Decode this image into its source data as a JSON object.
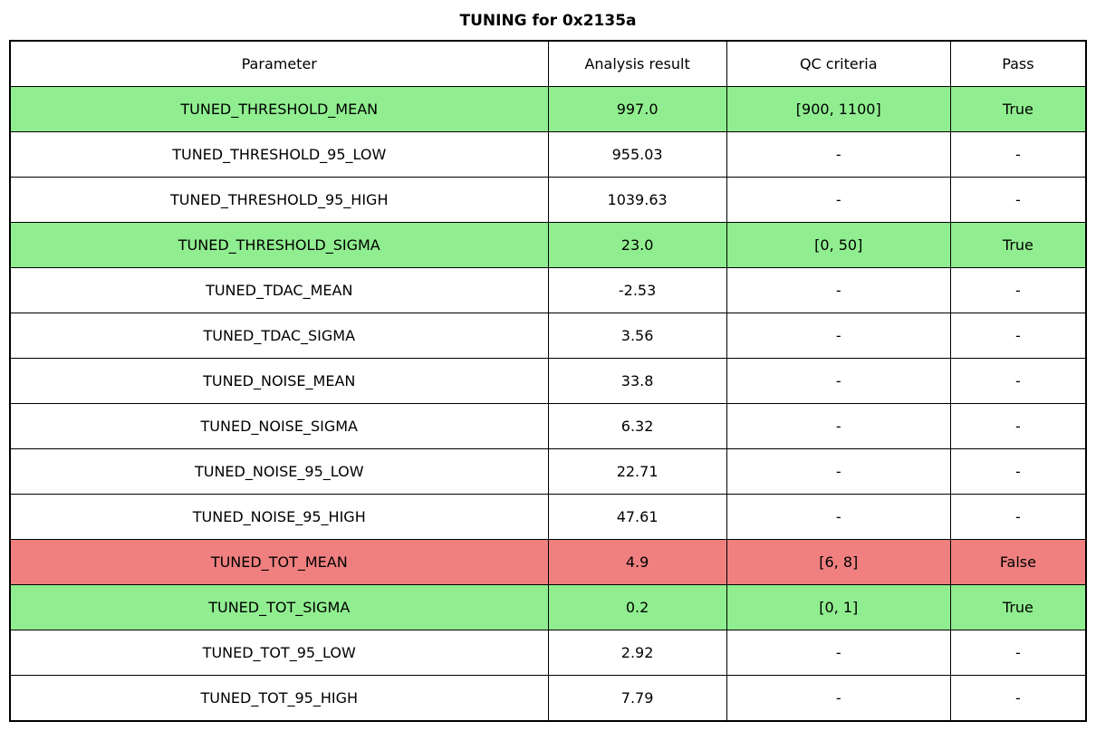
{
  "title": "TUNING for 0x2135a",
  "colors": {
    "pass_green": "#90ee90",
    "fail_red": "#f08080",
    "neutral": "#ffffff",
    "border": "#000000"
  },
  "table": {
    "headers": [
      "Parameter",
      "Analysis result",
      "QC criteria",
      "Pass"
    ],
    "rows": [
      {
        "parameter": "TUNED_THRESHOLD_MEAN",
        "result": "997.0",
        "qc": "[900, 1100]",
        "pass": "True",
        "status": "pass"
      },
      {
        "parameter": "TUNED_THRESHOLD_95_LOW",
        "result": "955.03",
        "qc": "-",
        "pass": "-",
        "status": "none"
      },
      {
        "parameter": "TUNED_THRESHOLD_95_HIGH",
        "result": "1039.63",
        "qc": "-",
        "pass": "-",
        "status": "none"
      },
      {
        "parameter": "TUNED_THRESHOLD_SIGMA",
        "result": "23.0",
        "qc": "[0, 50]",
        "pass": "True",
        "status": "pass"
      },
      {
        "parameter": "TUNED_TDAC_MEAN",
        "result": "-2.53",
        "qc": "-",
        "pass": "-",
        "status": "none"
      },
      {
        "parameter": "TUNED_TDAC_SIGMA",
        "result": "3.56",
        "qc": "-",
        "pass": "-",
        "status": "none"
      },
      {
        "parameter": "TUNED_NOISE_MEAN",
        "result": "33.8",
        "qc": "-",
        "pass": "-",
        "status": "none"
      },
      {
        "parameter": "TUNED_NOISE_SIGMA",
        "result": "6.32",
        "qc": "-",
        "pass": "-",
        "status": "none"
      },
      {
        "parameter": "TUNED_NOISE_95_LOW",
        "result": "22.71",
        "qc": "-",
        "pass": "-",
        "status": "none"
      },
      {
        "parameter": "TUNED_NOISE_95_HIGH",
        "result": "47.61",
        "qc": "-",
        "pass": "-",
        "status": "none"
      },
      {
        "parameter": "TUNED_TOT_MEAN",
        "result": "4.9",
        "qc": "[6, 8]",
        "pass": "False",
        "status": "fail"
      },
      {
        "parameter": "TUNED_TOT_SIGMA",
        "result": "0.2",
        "qc": "[0, 1]",
        "pass": "True",
        "status": "pass"
      },
      {
        "parameter": "TUNED_TOT_95_LOW",
        "result": "2.92",
        "qc": "-",
        "pass": "-",
        "status": "none"
      },
      {
        "parameter": "TUNED_TOT_95_HIGH",
        "result": "7.79",
        "qc": "-",
        "pass": "-",
        "status": "none"
      }
    ]
  },
  "chart_data": {
    "type": "table",
    "title": "TUNING for 0x2135a",
    "columns": [
      "Parameter",
      "Analysis result",
      "QC criteria",
      "Pass"
    ],
    "rows": [
      [
        "TUNED_THRESHOLD_MEAN",
        997.0,
        "[900, 1100]",
        "True"
      ],
      [
        "TUNED_THRESHOLD_95_LOW",
        955.03,
        "-",
        "-"
      ],
      [
        "TUNED_THRESHOLD_95_HIGH",
        1039.63,
        "-",
        "-"
      ],
      [
        "TUNED_THRESHOLD_SIGMA",
        23.0,
        "[0, 50]",
        "True"
      ],
      [
        "TUNED_TDAC_MEAN",
        -2.53,
        "-",
        "-"
      ],
      [
        "TUNED_TDAC_SIGMA",
        3.56,
        "-",
        "-"
      ],
      [
        "TUNED_NOISE_MEAN",
        33.8,
        "-",
        "-"
      ],
      [
        "TUNED_NOISE_SIGMA",
        6.32,
        "-",
        "-"
      ],
      [
        "TUNED_NOISE_95_LOW",
        22.71,
        "-",
        "-"
      ],
      [
        "TUNED_NOISE_95_HIGH",
        47.61,
        "-",
        "-"
      ],
      [
        "TUNED_TOT_MEAN",
        4.9,
        "[6, 8]",
        "False"
      ],
      [
        "TUNED_TOT_SIGMA",
        0.2,
        "[0, 1]",
        "True"
      ],
      [
        "TUNED_TOT_95_LOW",
        2.92,
        "-",
        "-"
      ],
      [
        "TUNED_TOT_95_HIGH",
        7.79,
        "-",
        "-"
      ]
    ],
    "row_highlight": [
      "pass",
      "none",
      "none",
      "pass",
      "none",
      "none",
      "none",
      "none",
      "none",
      "none",
      "fail",
      "pass",
      "none",
      "none"
    ],
    "legend_position": "none",
    "grid": true
  }
}
